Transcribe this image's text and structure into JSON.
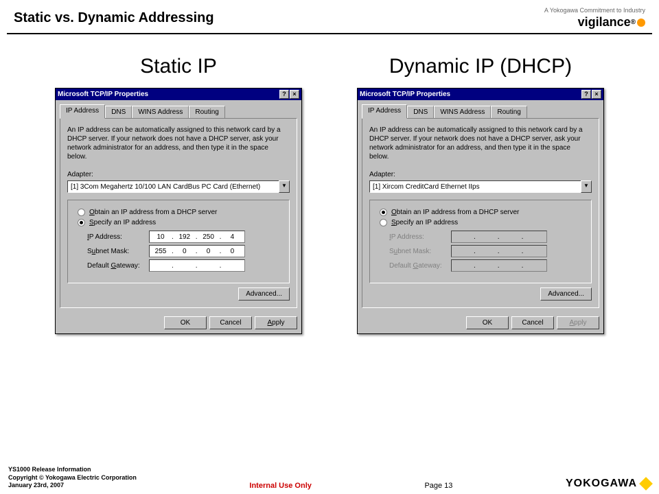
{
  "header": {
    "title": "Static vs. Dynamic Addressing",
    "tagline": "A Yokogawa Commitment to Industry",
    "brand": "vigilance"
  },
  "left": {
    "heading": "Static IP",
    "win_title": "Microsoft TCP/IP Properties",
    "tabs": [
      "IP Address",
      "DNS",
      "WINS Address",
      "Routing"
    ],
    "desc": "An IP address can be automatically assigned to this network card by a DHCP server. If your network does not have a DHCP server, ask your network administrator for an address, and then type it in the space below.",
    "adapter_label": "Adapter:",
    "adapter": "[1] 3Com Megahertz 10/100 LAN CardBus PC Card (Ethernet)",
    "r1": "Obtain an IP address from a DHCP server",
    "r2": "Specify an IP address",
    "ip_label": "IP Address:",
    "ip": [
      "10",
      "192",
      "250",
      "4"
    ],
    "mask_label": "Subnet Mask:",
    "mask": [
      "255",
      "0",
      "0",
      "0"
    ],
    "gw_label": "Default Gateway:",
    "gw": [
      "",
      "",
      "",
      ""
    ],
    "advanced": "Advanced...",
    "ok": "OK",
    "cancel": "Cancel",
    "apply": "Apply"
  },
  "right": {
    "heading": "Dynamic IP (DHCP)",
    "win_title": "Microsoft TCP/IP Properties",
    "tabs": [
      "IP Address",
      "DNS",
      "WINS Address",
      "Routing"
    ],
    "desc": "An IP address can be automatically assigned to this network card by a DHCP server. If your network does not have a DHCP server, ask your network administrator for an address, and then type it in the space below.",
    "adapter_label": "Adapter:",
    "adapter": "[1] Xircom CreditCard Ethernet IIps",
    "r1": "Obtain an IP address from a DHCP server",
    "r2": "Specify an IP address",
    "ip_label": "IP Address:",
    "mask_label": "Subnet Mask:",
    "gw_label": "Default Gateway:",
    "advanced": "Advanced...",
    "ok": "OK",
    "cancel": "Cancel",
    "apply": "Apply"
  },
  "footer": {
    "line1": "YS1000 Release Information",
    "line2": "Copyright © Yokogawa Electric Corporation",
    "line3": "January 23rd, 2007",
    "mid": "Internal Use Only",
    "page": "Page 13",
    "brand": "YOKOGAWA"
  }
}
